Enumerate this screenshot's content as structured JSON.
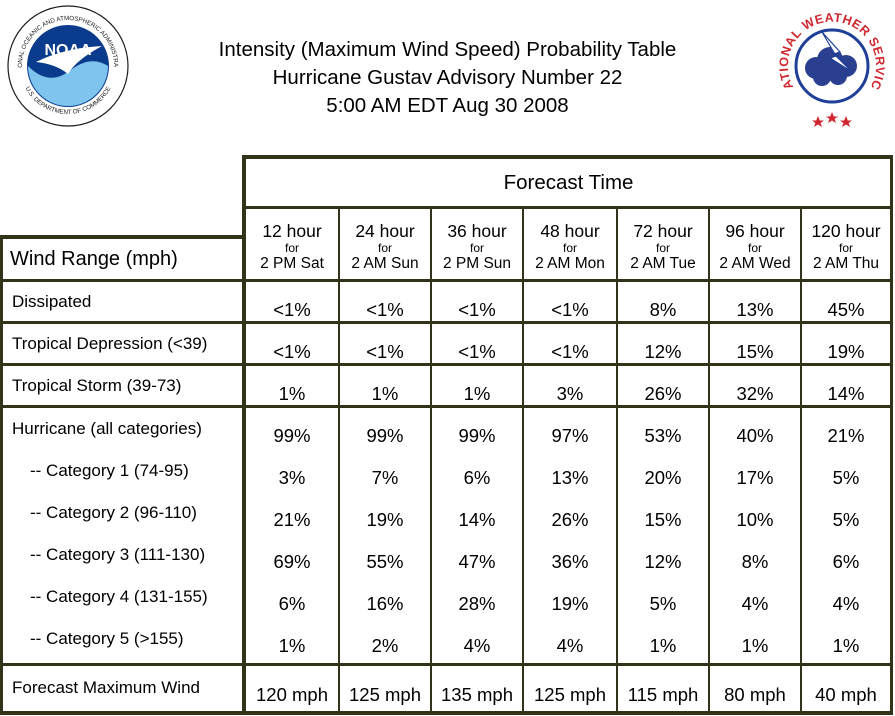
{
  "header": {
    "title_line1": "Intensity (Maximum Wind Speed) Probability Table",
    "title_line2": "Hurricane Gustav Advisory Number 22",
    "title_line3": "5:00 AM EDT Aug 30 2008",
    "noaa_logo": {
      "ring_text": "NATIONAL OCEANIC AND ATMOSPHERIC ADMINISTRATION",
      "bottom_text": "U.S. DEPARTMENT OF COMMERCE",
      "center_text": "NOAA"
    },
    "nws_logo": {
      "ring_text": "NATIONAL WEATHER SERVICE"
    }
  },
  "table": {
    "forecast_time_label": "Forecast Time",
    "wind_range_label": "Wind Range (mph)",
    "columns": [
      {
        "hour": "12 hour",
        "for": "for",
        "when": "2 PM Sat"
      },
      {
        "hour": "24 hour",
        "for": "for",
        "when": "2 AM Sun"
      },
      {
        "hour": "36 hour",
        "for": "for",
        "when": "2 PM Sun"
      },
      {
        "hour": "48 hour",
        "for": "for",
        "when": "2 AM Mon"
      },
      {
        "hour": "72 hour",
        "for": "for",
        "when": "2 AM Tue"
      },
      {
        "hour": "96 hour",
        "for": "for",
        "when": "2 AM Wed"
      },
      {
        "hour": "120 hour",
        "for": "for",
        "when": "2 AM Thu"
      }
    ],
    "rows": [
      {
        "label": "Dissipated",
        "values": [
          "<1%",
          "<1%",
          "<1%",
          "<1%",
          "8%",
          "13%",
          "45%"
        ]
      },
      {
        "label": "Tropical Depression (<39)",
        "values": [
          "<1%",
          "<1%",
          "<1%",
          "<1%",
          "12%",
          "15%",
          "19%"
        ]
      },
      {
        "label": "Tropical Storm (39-73)",
        "values": [
          "1%",
          "1%",
          "1%",
          "3%",
          "26%",
          "32%",
          "14%"
        ]
      },
      {
        "label": "Hurricane (all categories)",
        "values": [
          "99%",
          "99%",
          "99%",
          "97%",
          "53%",
          "40%",
          "21%"
        ]
      },
      {
        "label": "-- Category 1 (74-95)",
        "values": [
          "3%",
          "7%",
          "6%",
          "13%",
          "20%",
          "17%",
          "5%"
        ]
      },
      {
        "label": "-- Category 2 (96-110)",
        "values": [
          "21%",
          "19%",
          "14%",
          "26%",
          "15%",
          "10%",
          "5%"
        ]
      },
      {
        "label": "-- Category 3 (111-130)",
        "values": [
          "69%",
          "55%",
          "47%",
          "36%",
          "12%",
          "8%",
          "6%"
        ]
      },
      {
        "label": "-- Category 4 (131-155)",
        "values": [
          "6%",
          "16%",
          "28%",
          "19%",
          "5%",
          "4%",
          "4%"
        ]
      },
      {
        "label": "-- Category 5 (>155)",
        "values": [
          "1%",
          "2%",
          "4%",
          "4%",
          "1%",
          "1%",
          "1%"
        ]
      },
      {
        "label": "Forecast Maximum Wind",
        "values": [
          "120 mph",
          "125 mph",
          "135 mph",
          "125 mph",
          "115 mph",
          "80 mph",
          "40 mph"
        ]
      }
    ]
  }
}
